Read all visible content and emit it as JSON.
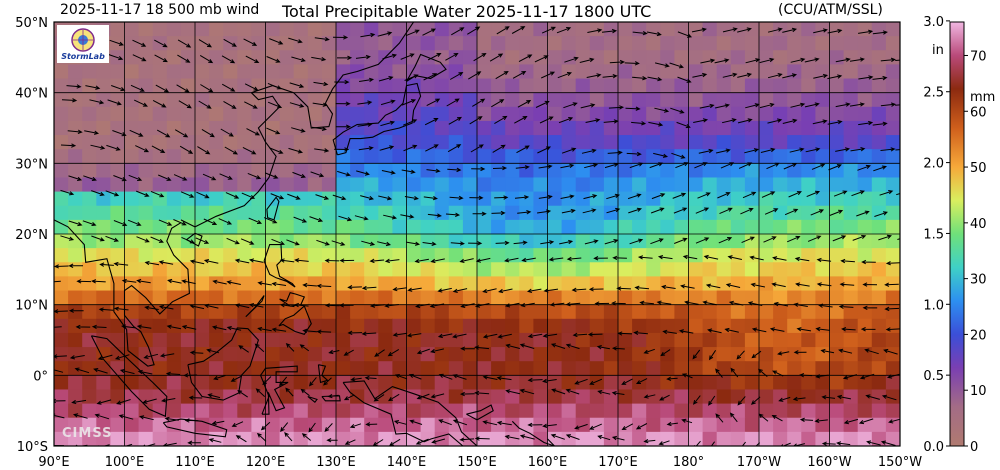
{
  "header": {
    "left_title": "2025-11-17 18 500 mb wind",
    "main_title": "Total Precipitable Water  2025-11-17 1800 UTC",
    "right_title": "(CCU/ATM/SSL)"
  },
  "logo": {
    "text": "StormLab"
  },
  "watermark": "CIMSS",
  "map": {
    "lon_range": [
      90,
      210
    ],
    "lat_range": [
      -10,
      50
    ],
    "lon_labels": [
      "90°E",
      "100°E",
      "110°E",
      "120°E",
      "130°E",
      "140°E",
      "150°E",
      "160°E",
      "170°E",
      "180°",
      "170°W",
      "160°W",
      "150°W"
    ],
    "lat_labels": [
      "50°N",
      "40°N",
      "30°N",
      "20°N",
      "10°N",
      "0°",
      "10°S"
    ],
    "colors": {
      "frame": "#000000",
      "grid": "#000000",
      "coast": "#000000",
      "arrow": "#000000"
    }
  },
  "colorbar": {
    "inch_label": "in",
    "mm_label": "mm",
    "inch_ticks": [
      "3.0",
      "2.5",
      "2.0",
      "1.5",
      "1.0",
      "0.5",
      "0.0"
    ],
    "mm_ticks": [
      "70",
      "60",
      "50",
      "40",
      "30",
      "20",
      "10",
      "0"
    ],
    "stops": [
      {
        "mm": 0,
        "color": "#b07a70"
      },
      {
        "mm": 7,
        "color": "#a36c86"
      },
      {
        "mm": 14,
        "color": "#7a3fb2"
      },
      {
        "mm": 20,
        "color": "#3b4fd8"
      },
      {
        "mm": 26,
        "color": "#2d8ff0"
      },
      {
        "mm": 32,
        "color": "#3fd1c6"
      },
      {
        "mm": 38,
        "color": "#6fe07a"
      },
      {
        "mm": 44,
        "color": "#d9ee5f"
      },
      {
        "mm": 50,
        "color": "#f6a93a"
      },
      {
        "mm": 57,
        "color": "#cf5f1c"
      },
      {
        "mm": 64,
        "color": "#8c2a10"
      },
      {
        "mm": 70,
        "color": "#b94a7a"
      },
      {
        "mm": 76,
        "color": "#f1b7e2"
      }
    ]
  }
}
